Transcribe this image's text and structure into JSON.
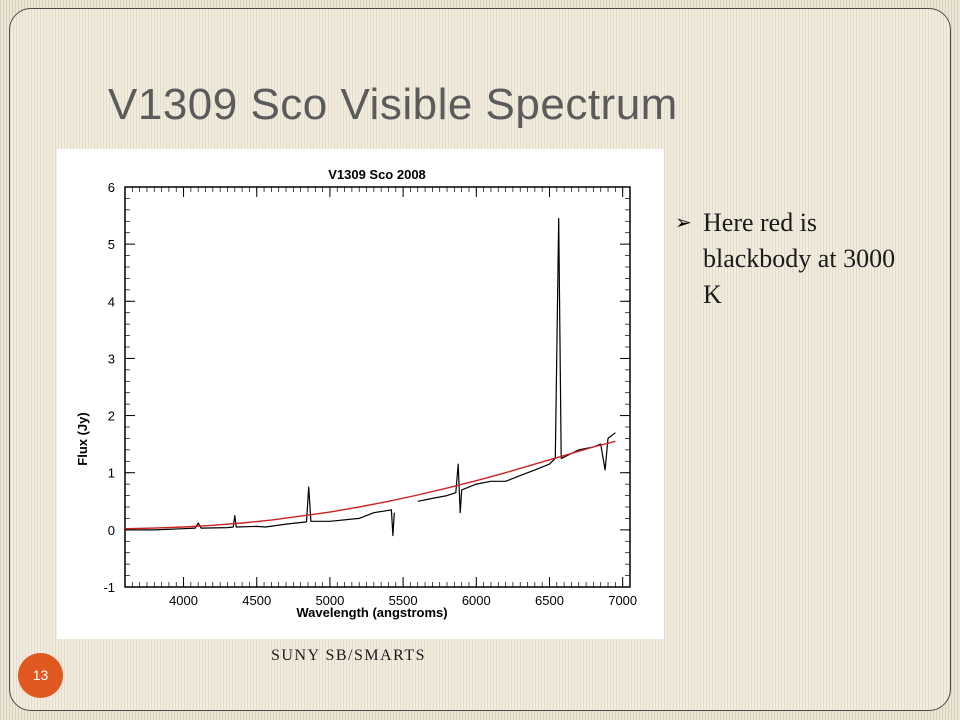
{
  "slide": {
    "title": "V1309 Sco Visible Spectrum",
    "bullet": "Here red is blackbody at 3000 K",
    "credit": "SUNY SB/SMARTS",
    "page_number": "13",
    "bullet_icon": "arrow-bullet-icon",
    "colors": {
      "accent": "#e0571f",
      "title": "#5b5b5b",
      "blackbody_line": "#cc2222",
      "spectrum_line": "#000000"
    }
  },
  "chart_data": {
    "type": "line",
    "title": "V1309 Sco 2008",
    "xlabel": "Wavelength (angstroms)",
    "ylabel": "Flux (Jy)",
    "xlim": [
      3600,
      7050
    ],
    "ylim": [
      -1,
      6
    ],
    "x_ticks": [
      4000,
      4500,
      5000,
      5500,
      6000,
      6500,
      7000
    ],
    "y_ticks": [
      -1,
      0,
      1,
      2,
      3,
      4,
      5,
      6
    ],
    "grid": false,
    "series": [
      {
        "color": "#000000",
        "segments": [
          [
            [
              3600,
              0.0
            ],
            [
              3800,
              0.0
            ],
            [
              4000,
              0.02
            ],
            [
              4080,
              0.03
            ],
            [
              4100,
              0.12
            ],
            [
              4120,
              0.03
            ],
            [
              4300,
              0.04
            ],
            [
              4340,
              0.05
            ],
            [
              4350,
              0.25
            ],
            [
              4360,
              0.05
            ],
            [
              4500,
              0.06
            ],
            [
              4560,
              0.05
            ]
          ],
          [
            [
              4560,
              0.05
            ],
            [
              4700,
              0.1
            ],
            [
              4840,
              0.14
            ],
            [
              4855,
              0.75
            ],
            [
              4870,
              0.15
            ],
            [
              5000,
              0.15
            ],
            [
              5200,
              0.2
            ],
            [
              5300,
              0.3
            ],
            [
              5420,
              0.35
            ],
            [
              5430,
              -0.1
            ],
            [
              5440,
              0.3
            ]
          ],
          [
            [
              5600,
              0.5
            ],
            [
              5700,
              0.55
            ],
            [
              5800,
              0.6
            ],
            [
              5860,
              0.65
            ],
            [
              5876,
              1.15
            ],
            [
              5890,
              0.3
            ],
            [
              5900,
              0.7
            ],
            [
              6000,
              0.8
            ],
            [
              6100,
              0.85
            ],
            [
              6200,
              0.85
            ],
            [
              6300,
              0.95
            ],
            [
              6400,
              1.05
            ],
            [
              6500,
              1.15
            ],
            [
              6540,
              1.25
            ],
            [
              6563,
              5.45
            ],
            [
              6580,
              1.25
            ],
            [
              6700,
              1.4
            ],
            [
              6800,
              1.45
            ],
            [
              6850,
              1.5
            ],
            [
              6880,
              1.05
            ],
            [
              6900,
              1.6
            ],
            [
              6950,
              1.7
            ]
          ]
        ]
      },
      {
        "color": "#cc2222",
        "points": [
          [
            3600,
            0.02
          ],
          [
            3800,
            0.03
          ],
          [
            4000,
            0.05
          ],
          [
            4200,
            0.08
          ],
          [
            4400,
            0.12
          ],
          [
            4600,
            0.17
          ],
          [
            4800,
            0.24
          ],
          [
            5000,
            0.31
          ],
          [
            5200,
            0.4
          ],
          [
            5400,
            0.5
          ],
          [
            5600,
            0.61
          ],
          [
            5800,
            0.73
          ],
          [
            6000,
            0.86
          ],
          [
            6200,
            1.0
          ],
          [
            6400,
            1.15
          ],
          [
            6600,
            1.3
          ],
          [
            6800,
            1.45
          ],
          [
            6950,
            1.55
          ]
        ]
      }
    ]
  }
}
